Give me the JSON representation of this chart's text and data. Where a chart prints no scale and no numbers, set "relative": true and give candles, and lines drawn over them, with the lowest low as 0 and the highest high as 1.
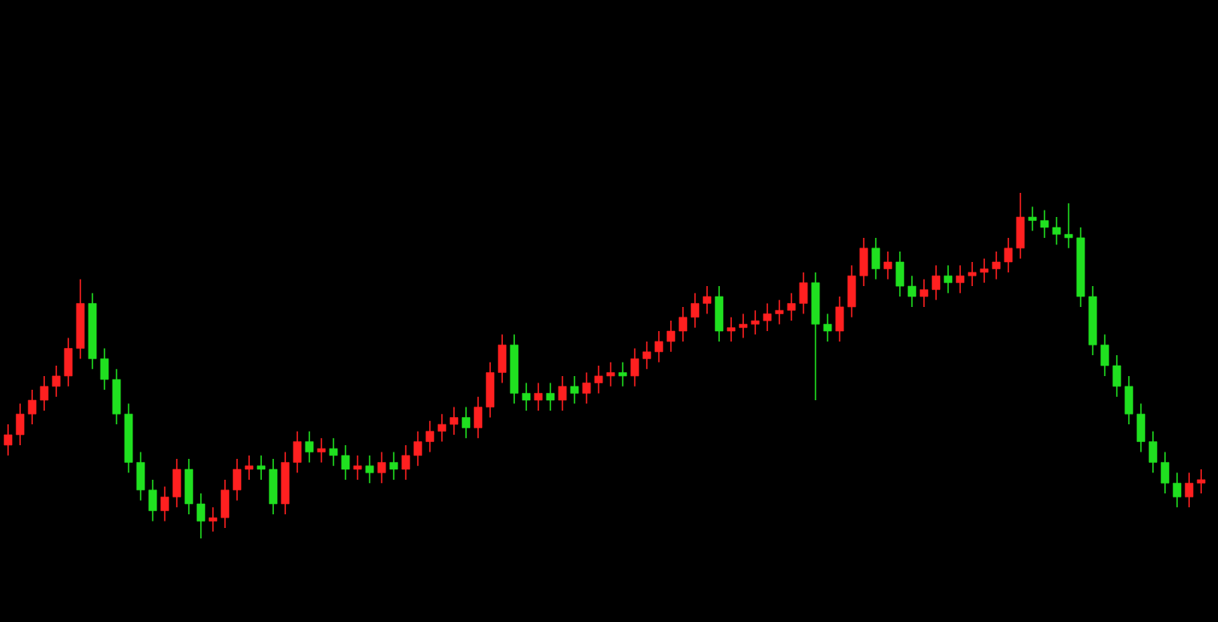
{
  "chart_data": {
    "type": "candlestick",
    "relative": true,
    "categories": [
      null,
      null,
      null,
      null,
      null,
      null,
      null,
      null,
      null,
      null,
      null,
      null,
      null,
      null,
      null,
      null,
      null,
      null,
      null,
      null,
      null,
      null,
      null,
      null,
      null,
      null,
      null,
      null,
      null,
      null,
      null,
      null,
      null,
      null,
      null,
      null,
      null,
      null,
      null,
      null,
      null,
      null,
      null,
      null,
      null,
      null,
      null,
      null,
      null,
      null,
      null,
      null,
      null,
      null,
      null,
      null,
      null,
      null,
      null,
      null,
      null,
      null,
      null,
      null,
      null,
      null,
      null,
      null,
      null,
      null,
      null,
      null,
      null,
      null,
      null,
      null,
      null,
      null,
      null,
      null,
      null,
      null,
      null,
      null,
      null,
      null,
      null,
      null,
      null,
      null,
      null,
      null,
      null,
      null,
      null,
      null,
      null,
      null,
      null,
      null
    ],
    "ohlc": [
      [
        0.27,
        0.33,
        0.24,
        0.3
      ],
      [
        0.3,
        0.39,
        0.27,
        0.36
      ],
      [
        0.36,
        0.43,
        0.33,
        0.4
      ],
      [
        0.4,
        0.47,
        0.37,
        0.44
      ],
      [
        0.44,
        0.5,
        0.41,
        0.47
      ],
      [
        0.47,
        0.58,
        0.44,
        0.55
      ],
      [
        0.55,
        0.75,
        0.52,
        0.68
      ],
      [
        0.68,
        0.71,
        0.49,
        0.52
      ],
      [
        0.52,
        0.55,
        0.43,
        0.46
      ],
      [
        0.46,
        0.49,
        0.33,
        0.36
      ],
      [
        0.36,
        0.39,
        0.19,
        0.22
      ],
      [
        0.22,
        0.25,
        0.11,
        0.14
      ],
      [
        0.14,
        0.17,
        0.05,
        0.08
      ],
      [
        0.08,
        0.15,
        0.05,
        0.12
      ],
      [
        0.12,
        0.23,
        0.09,
        0.2
      ],
      [
        0.2,
        0.23,
        0.07,
        0.1
      ],
      [
        0.1,
        0.13,
        0.0,
        0.05
      ],
      [
        0.05,
        0.09,
        0.02,
        0.06
      ],
      [
        0.06,
        0.17,
        0.03,
        0.14
      ],
      [
        0.14,
        0.23,
        0.11,
        0.2
      ],
      [
        0.2,
        0.24,
        0.17,
        0.21
      ],
      [
        0.21,
        0.24,
        0.17,
        0.2
      ],
      [
        0.2,
        0.23,
        0.07,
        0.1
      ],
      [
        0.1,
        0.25,
        0.07,
        0.22
      ],
      [
        0.22,
        0.31,
        0.19,
        0.28
      ],
      [
        0.28,
        0.31,
        0.22,
        0.25
      ],
      [
        0.25,
        0.29,
        0.22,
        0.26
      ],
      [
        0.26,
        0.29,
        0.21,
        0.24
      ],
      [
        0.24,
        0.27,
        0.17,
        0.2
      ],
      [
        0.2,
        0.24,
        0.17,
        0.21
      ],
      [
        0.21,
        0.24,
        0.16,
        0.19
      ],
      [
        0.19,
        0.25,
        0.16,
        0.22
      ],
      [
        0.22,
        0.25,
        0.17,
        0.2
      ],
      [
        0.2,
        0.27,
        0.17,
        0.24
      ],
      [
        0.24,
        0.31,
        0.21,
        0.28
      ],
      [
        0.28,
        0.34,
        0.25,
        0.31
      ],
      [
        0.31,
        0.36,
        0.28,
        0.33
      ],
      [
        0.33,
        0.38,
        0.3,
        0.35
      ],
      [
        0.35,
        0.38,
        0.29,
        0.32
      ],
      [
        0.32,
        0.41,
        0.29,
        0.38
      ],
      [
        0.38,
        0.51,
        0.35,
        0.48
      ],
      [
        0.48,
        0.59,
        0.45,
        0.56
      ],
      [
        0.56,
        0.59,
        0.39,
        0.42
      ],
      [
        0.42,
        0.45,
        0.37,
        0.4
      ],
      [
        0.4,
        0.45,
        0.37,
        0.42
      ],
      [
        0.42,
        0.45,
        0.37,
        0.4
      ],
      [
        0.4,
        0.47,
        0.37,
        0.44
      ],
      [
        0.44,
        0.47,
        0.39,
        0.42
      ],
      [
        0.42,
        0.48,
        0.39,
        0.45
      ],
      [
        0.45,
        0.5,
        0.42,
        0.47
      ],
      [
        0.47,
        0.51,
        0.44,
        0.48
      ],
      [
        0.48,
        0.51,
        0.44,
        0.47
      ],
      [
        0.47,
        0.55,
        0.44,
        0.52
      ],
      [
        0.52,
        0.57,
        0.49,
        0.54
      ],
      [
        0.54,
        0.6,
        0.51,
        0.57
      ],
      [
        0.57,
        0.63,
        0.54,
        0.6
      ],
      [
        0.6,
        0.67,
        0.57,
        0.64
      ],
      [
        0.64,
        0.71,
        0.61,
        0.68
      ],
      [
        0.68,
        0.73,
        0.65,
        0.7
      ],
      [
        0.7,
        0.73,
        0.57,
        0.6
      ],
      [
        0.6,
        0.64,
        0.57,
        0.61
      ],
      [
        0.61,
        0.65,
        0.58,
        0.62
      ],
      [
        0.62,
        0.66,
        0.59,
        0.63
      ],
      [
        0.63,
        0.68,
        0.6,
        0.65
      ],
      [
        0.65,
        0.69,
        0.62,
        0.66
      ],
      [
        0.66,
        0.71,
        0.63,
        0.68
      ],
      [
        0.68,
        0.77,
        0.65,
        0.74
      ],
      [
        0.74,
        0.77,
        0.4,
        0.62
      ],
      [
        0.62,
        0.65,
        0.57,
        0.6
      ],
      [
        0.6,
        0.7,
        0.57,
        0.67
      ],
      [
        0.67,
        0.79,
        0.64,
        0.76
      ],
      [
        0.76,
        0.87,
        0.73,
        0.84
      ],
      [
        0.84,
        0.87,
        0.75,
        0.78
      ],
      [
        0.78,
        0.83,
        0.75,
        0.8
      ],
      [
        0.8,
        0.83,
        0.7,
        0.73
      ],
      [
        0.73,
        0.76,
        0.67,
        0.7
      ],
      [
        0.7,
        0.75,
        0.67,
        0.72
      ],
      [
        0.72,
        0.79,
        0.69,
        0.76
      ],
      [
        0.76,
        0.79,
        0.71,
        0.74
      ],
      [
        0.74,
        0.79,
        0.71,
        0.76
      ],
      [
        0.76,
        0.8,
        0.73,
        0.77
      ],
      [
        0.77,
        0.81,
        0.74,
        0.78
      ],
      [
        0.78,
        0.83,
        0.75,
        0.8
      ],
      [
        0.8,
        0.87,
        0.77,
        0.84
      ],
      [
        0.84,
        1.0,
        0.81,
        0.93
      ],
      [
        0.93,
        0.96,
        0.89,
        0.92
      ],
      [
        0.92,
        0.95,
        0.87,
        0.9
      ],
      [
        0.9,
        0.93,
        0.85,
        0.88
      ],
      [
        0.88,
        0.97,
        0.84,
        0.87
      ],
      [
        0.87,
        0.9,
        0.67,
        0.7
      ],
      [
        0.7,
        0.73,
        0.53,
        0.56
      ],
      [
        0.56,
        0.59,
        0.47,
        0.5
      ],
      [
        0.5,
        0.53,
        0.41,
        0.44
      ],
      [
        0.44,
        0.47,
        0.33,
        0.36
      ],
      [
        0.36,
        0.39,
        0.25,
        0.28
      ],
      [
        0.28,
        0.31,
        0.19,
        0.22
      ],
      [
        0.22,
        0.25,
        0.13,
        0.16
      ],
      [
        0.16,
        0.19,
        0.09,
        0.12
      ],
      [
        0.12,
        0.19,
        0.09,
        0.16
      ],
      [
        0.16,
        0.2,
        0.13,
        0.17
      ]
    ],
    "colors": [
      "#ff2020",
      "#ff2020",
      "#ff2020",
      "#ff2020",
      "#ff2020",
      "#ff2020",
      "#ff2020",
      "#20e020",
      "#20e020",
      "#20e020",
      "#20e020",
      "#20e020",
      "#20e020",
      "#ff2020",
      "#ff2020",
      "#20e020",
      "#20e020",
      "#ff2020",
      "#ff2020",
      "#ff2020",
      "#ff2020",
      "#20e020",
      "#20e020",
      "#ff2020",
      "#ff2020",
      "#20e020",
      "#ff2020",
      "#20e020",
      "#20e020",
      "#ff2020",
      "#20e020",
      "#ff2020",
      "#20e020",
      "#ff2020",
      "#ff2020",
      "#ff2020",
      "#ff2020",
      "#ff2020",
      "#20e020",
      "#ff2020",
      "#ff2020",
      "#ff2020",
      "#20e020",
      "#20e020",
      "#ff2020",
      "#20e020",
      "#ff2020",
      "#20e020",
      "#ff2020",
      "#ff2020",
      "#ff2020",
      "#20e020",
      "#ff2020",
      "#ff2020",
      "#ff2020",
      "#ff2020",
      "#ff2020",
      "#ff2020",
      "#ff2020",
      "#20e020",
      "#ff2020",
      "#ff2020",
      "#ff2020",
      "#ff2020",
      "#ff2020",
      "#ff2020",
      "#ff2020",
      "#20e020",
      "#20e020",
      "#ff2020",
      "#ff2020",
      "#ff2020",
      "#20e020",
      "#ff2020",
      "#20e020",
      "#20e020",
      "#ff2020",
      "#ff2020",
      "#20e020",
      "#ff2020",
      "#ff2020",
      "#ff2020",
      "#ff2020",
      "#ff2020",
      "#ff2020",
      "#20e020",
      "#20e020",
      "#20e020",
      "#20e020",
      "#20e020",
      "#20e020",
      "#20e020",
      "#20e020",
      "#20e020",
      "#20e020",
      "#20e020",
      "#20e020",
      "#20e020",
      "#ff2020",
      "#ff2020"
    ]
  }
}
